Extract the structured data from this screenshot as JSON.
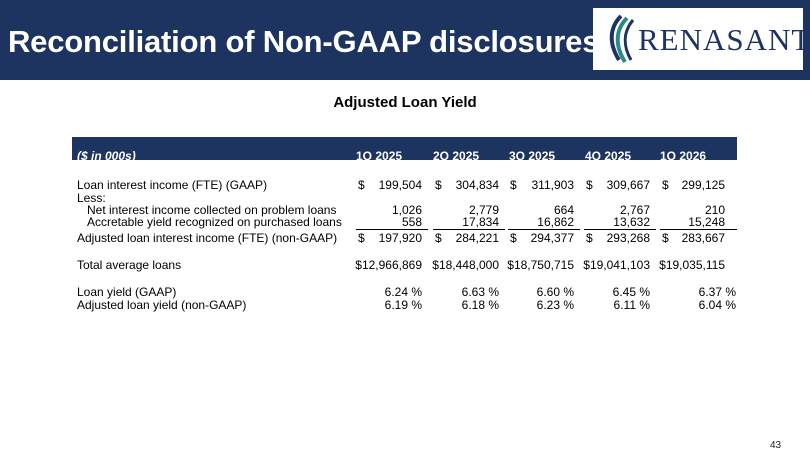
{
  "header": {
    "title": "Reconciliation of Non-GAAP disclosures",
    "logo_text": "RENASANT"
  },
  "subtitle": "Adjusted Loan Yield",
  "table": {
    "unit_label": "($ in 000s)",
    "columns": [
      "1Q 2025",
      "2Q 2025",
      "3Q 2025",
      "4Q 2025",
      "1Q 2026"
    ],
    "rows": {
      "loan_interest_income": {
        "label": "Loan interest income (FTE) (GAAP)",
        "values": [
          "199,504",
          "304,834",
          "311,903",
          "309,667",
          "299,125"
        ]
      },
      "less": {
        "label": "Less:"
      },
      "net_interest_problem": {
        "label": "Net interest income collected on problem loans",
        "values": [
          "1,026",
          "2,779",
          "664",
          "2,767",
          "210"
        ]
      },
      "accretable_yield": {
        "label": "Accretable yield recognized on purchased loans",
        "values": [
          "558",
          "17,834",
          "16,862",
          "13,632",
          "15,248"
        ]
      },
      "adjusted_loan_interest": {
        "label": "Adjusted loan interest income (FTE) (non-GAAP)",
        "values": [
          "197,920",
          "284,221",
          "294,377",
          "293,268",
          "283,667"
        ]
      },
      "total_average_loans": {
        "label": "Total average loans",
        "values": [
          "$12,966,869",
          "$18,448,000",
          "$18,750,715",
          "$19,041,103",
          "$19,035,115"
        ]
      },
      "loan_yield": {
        "label": "Loan yield (GAAP)",
        "values": [
          "6.24 %",
          "6.63 %",
          "6.60 %",
          "6.45 %",
          "6.37 %"
        ]
      },
      "adjusted_loan_yield": {
        "label": "Adjusted loan yield (non-GAAP)",
        "values": [
          "6.19 %",
          "6.18 %",
          "6.23 %",
          "6.11 %",
          "6.04 %"
        ]
      }
    },
    "currency_symbol": "$"
  },
  "page_number": "43",
  "colors": {
    "navy": "#1d3461",
    "teal": "#2a8a8a"
  }
}
